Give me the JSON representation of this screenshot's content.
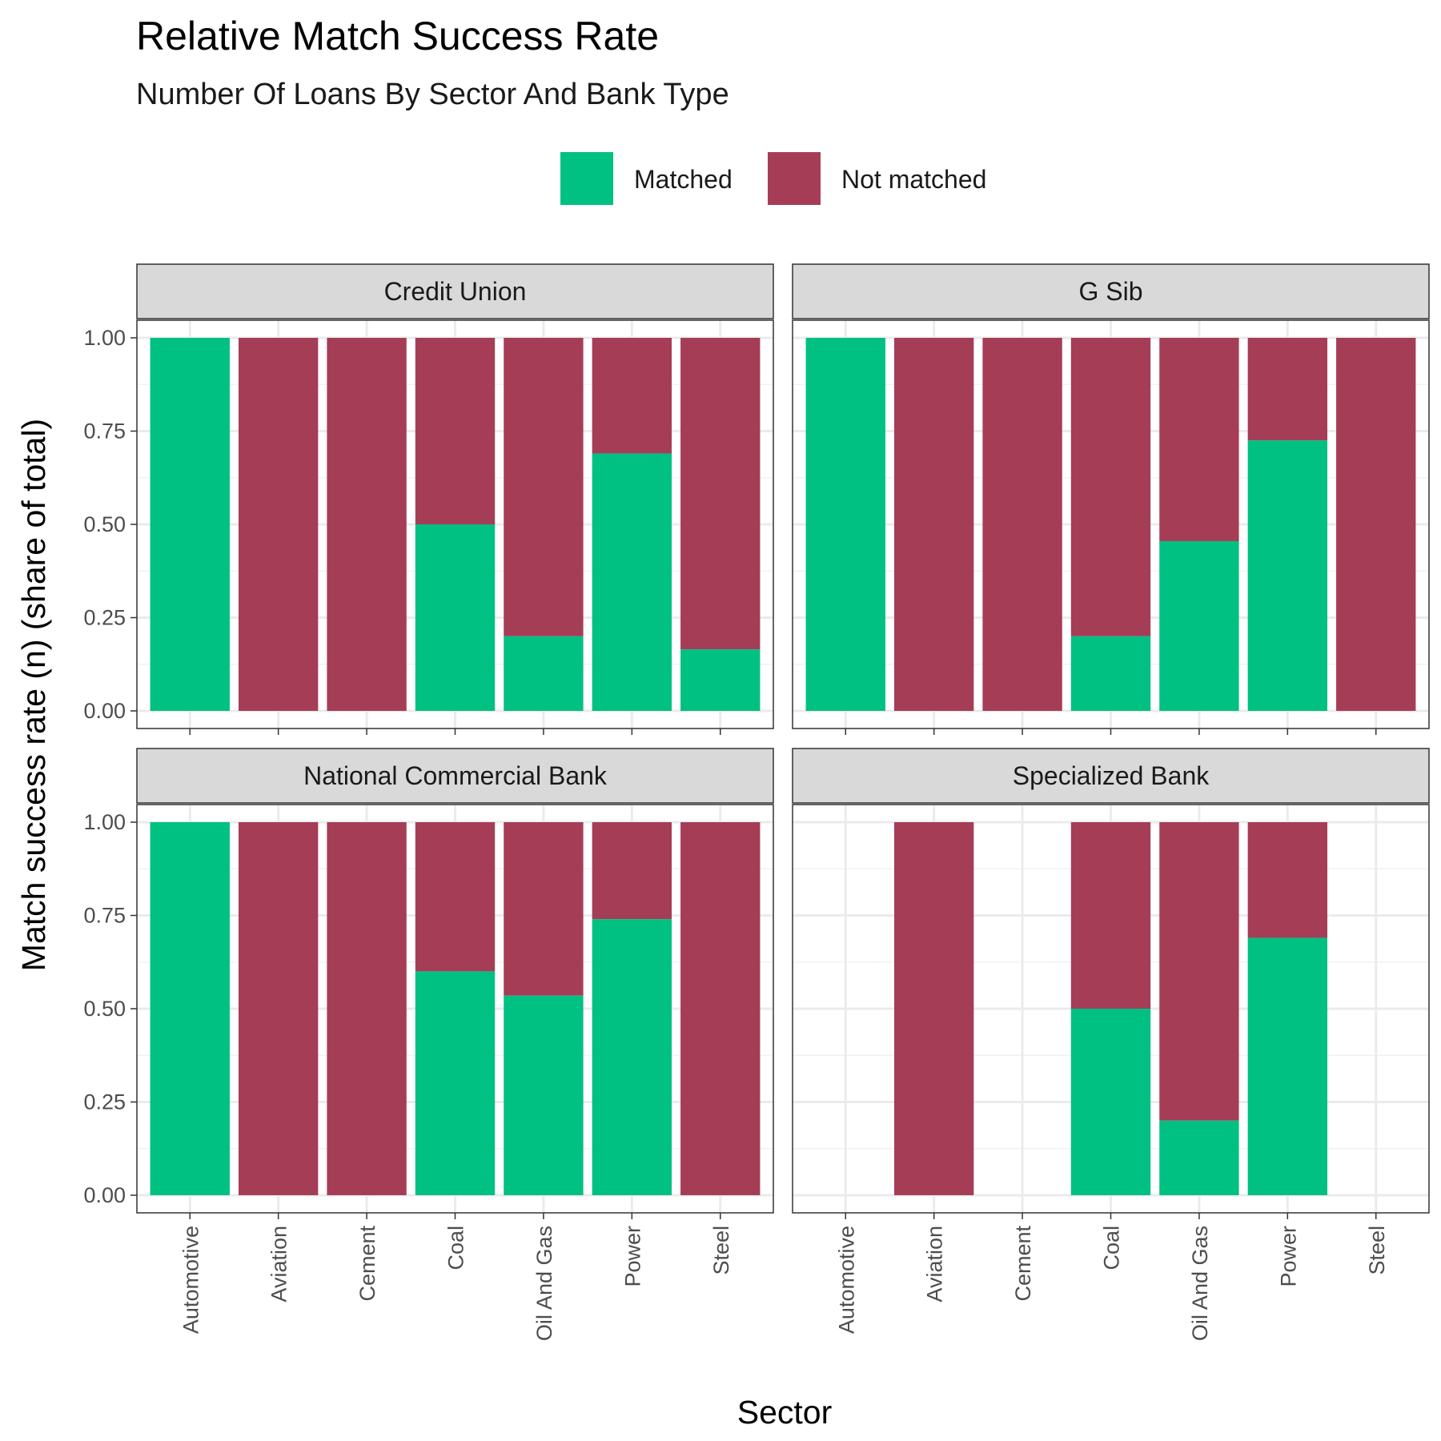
{
  "chart_data": {
    "type": "bar",
    "stacked": true,
    "title": "Relative Match Success Rate",
    "subtitle": "Number Of Loans By Sector And Bank Type",
    "xlabel": "Sector",
    "ylabel": "Match success rate (n) (share of total)",
    "ylim": [
      0,
      1
    ],
    "yticks": [
      "0.00",
      "0.25",
      "0.50",
      "0.75",
      "1.00"
    ],
    "categories": [
      "Automotive",
      "Aviation",
      "Cement",
      "Coal",
      "Oil And Gas",
      "Power",
      "Steel"
    ],
    "legend": {
      "position": "top",
      "entries": [
        {
          "name": "Matched",
          "color": "#00C082"
        },
        {
          "name": "Not matched",
          "color": "#A63D57"
        }
      ]
    },
    "grid": true,
    "facets": [
      {
        "label": "Credit Union",
        "matched": [
          1.0,
          0.0,
          0.0,
          0.5,
          0.2,
          0.69,
          0.165
        ],
        "present": [
          true,
          true,
          true,
          true,
          true,
          true,
          true
        ]
      },
      {
        "label": "G Sib",
        "matched": [
          1.0,
          0.0,
          0.0,
          0.2,
          0.455,
          0.725,
          0.0
        ],
        "present": [
          true,
          true,
          true,
          true,
          true,
          true,
          true
        ]
      },
      {
        "label": "National Commercial Bank",
        "matched": [
          1.0,
          0.0,
          0.0,
          0.6,
          0.535,
          0.74,
          0.0
        ],
        "present": [
          true,
          true,
          true,
          true,
          true,
          true,
          true
        ]
      },
      {
        "label": "Specialized Bank",
        "matched": [
          0,
          0.0,
          0,
          0.5,
          0.2,
          0.69,
          0
        ],
        "present": [
          false,
          true,
          false,
          true,
          true,
          true,
          false
        ]
      }
    ]
  }
}
